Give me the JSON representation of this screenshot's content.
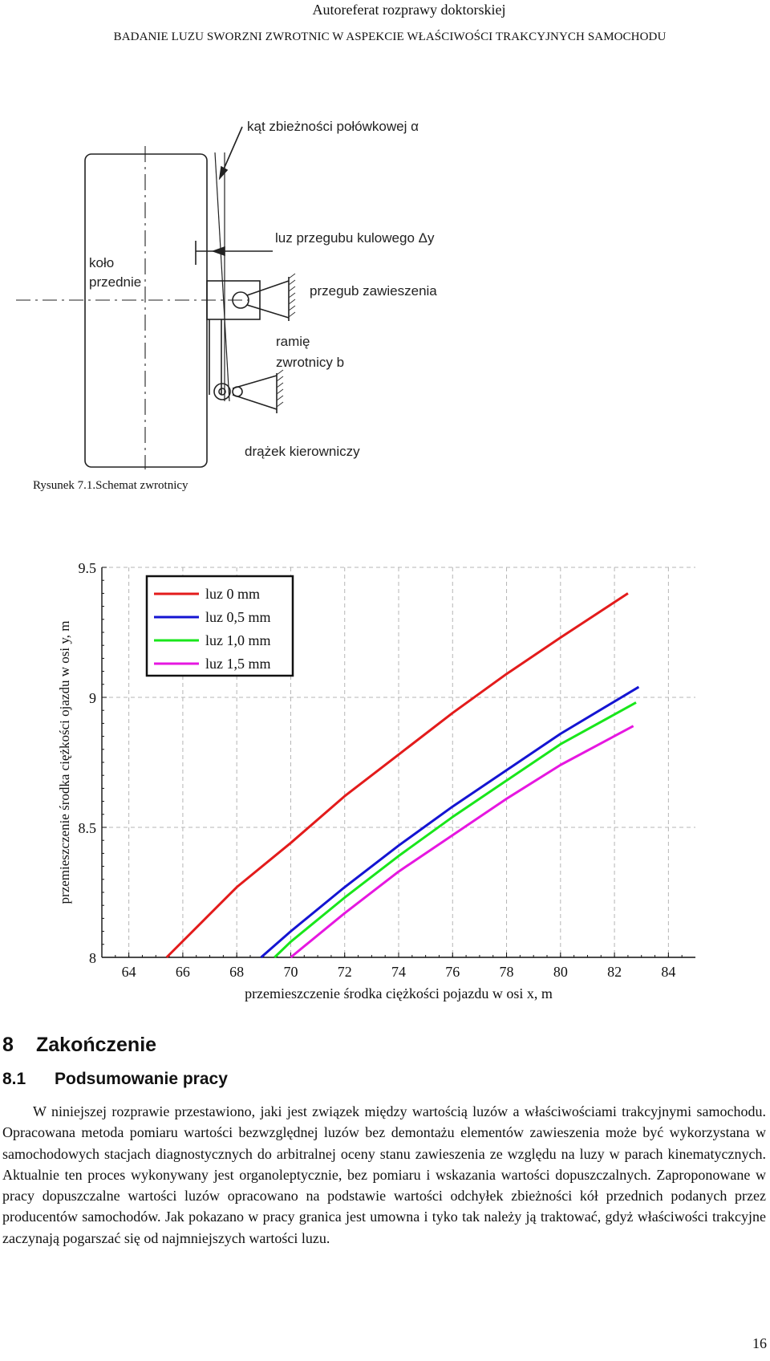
{
  "header": {
    "title": "Autoreferat rozprawy doktorskiej",
    "subtitle": "BADANIE LUZU SWORZNI ZWROTNIC W ASPEKCIE WŁAŚCIWOŚCI TRAKCYJNYCH SAMOCHODU"
  },
  "figure": {
    "labels": {
      "angle": "kąt zbieżności połówkowej α",
      "play": "luz przegubu kulowego Δy",
      "wheel_line1": "koło",
      "wheel_line2": "przednie",
      "joint": "przegub zawieszenia",
      "arm_line1": "ramię",
      "arm_line2": "zwrotnicy b",
      "tie_rod": "drążek kierowniczy"
    },
    "caption": "Rysunek 7.1.Schemat zwrotnicy"
  },
  "chart_data": {
    "type": "line",
    "xlabel": "przemieszczenie środka ciężkości pojazdu w osi x, m",
    "ylabel": "przemieszczenie środka ciężkości ojazdu w osi y, m",
    "xlim": [
      63,
      85
    ],
    "ylim": [
      8,
      9.5
    ],
    "xticks": [
      64,
      66,
      68,
      70,
      72,
      74,
      76,
      78,
      80,
      82,
      84
    ],
    "yticks": [
      8,
      8.5,
      9,
      9.5
    ],
    "grid": true,
    "legend_position": "top-left",
    "series": [
      {
        "name": "luz 0 mm",
        "color": "#e31b1b",
        "points": [
          [
            65.4,
            8.0
          ],
          [
            68,
            8.27
          ],
          [
            70,
            8.44
          ],
          [
            72,
            8.62
          ],
          [
            74,
            8.78
          ],
          [
            76,
            8.94
          ],
          [
            78,
            9.09
          ],
          [
            80,
            9.23
          ],
          [
            82.5,
            9.4
          ]
        ]
      },
      {
        "name": "luz 0,5 mm",
        "color": "#1414d2",
        "points": [
          [
            68.9,
            8.0
          ],
          [
            70,
            8.1
          ],
          [
            72,
            8.27
          ],
          [
            74,
            8.43
          ],
          [
            76,
            8.58
          ],
          [
            78,
            8.72
          ],
          [
            80,
            8.86
          ],
          [
            82.9,
            9.04
          ]
        ]
      },
      {
        "name": "luz 1,0 mm",
        "color": "#19e61b",
        "points": [
          [
            69.4,
            8.0
          ],
          [
            70,
            8.06
          ],
          [
            72,
            8.23
          ],
          [
            74,
            8.39
          ],
          [
            76,
            8.54
          ],
          [
            78,
            8.68
          ],
          [
            80,
            8.82
          ],
          [
            82.8,
            8.98
          ]
        ]
      },
      {
        "name": "luz 1,5 mm",
        "color": "#e617e0",
        "points": [
          [
            70,
            8.0
          ],
          [
            72,
            8.17
          ],
          [
            74,
            8.33
          ],
          [
            76,
            8.47
          ],
          [
            78,
            8.61
          ],
          [
            80,
            8.74
          ],
          [
            82.7,
            8.89
          ]
        ]
      }
    ]
  },
  "section": {
    "number": "8",
    "title": "Zakończenie",
    "sub_number": "8.1",
    "sub_title": "Podsumowanie pracy",
    "paragraph": "W niniejszej rozprawie przestawiono, jaki jest związek między wartością luzów a właściwościami trakcyjnymi samochodu. Opracowana metoda pomiaru wartości bezwzględnej luzów bez demontażu elementów zawieszenia może być wykorzystana w samochodowych stacjach diagnostycznych do arbitralnej oceny stanu zawieszenia ze względu na luzy w parach kinematycznych. Aktualnie ten proces wykonywany jest organoleptycznie, bez pomiaru i wskazania wartości dopuszczalnych. Zaproponowane w pracy dopuszczalne wartości luzów opracowano na podstawie wartości odchyłek zbieżności kół przednich podanych przez producentów samochodów. Jak pokazano w pracy granica jest umowna i tyko tak należy ją traktować, gdyż właściwości trakcyjne zaczynają pogarszać się od najmniejszych wartości luzu."
  },
  "page_number": "16"
}
